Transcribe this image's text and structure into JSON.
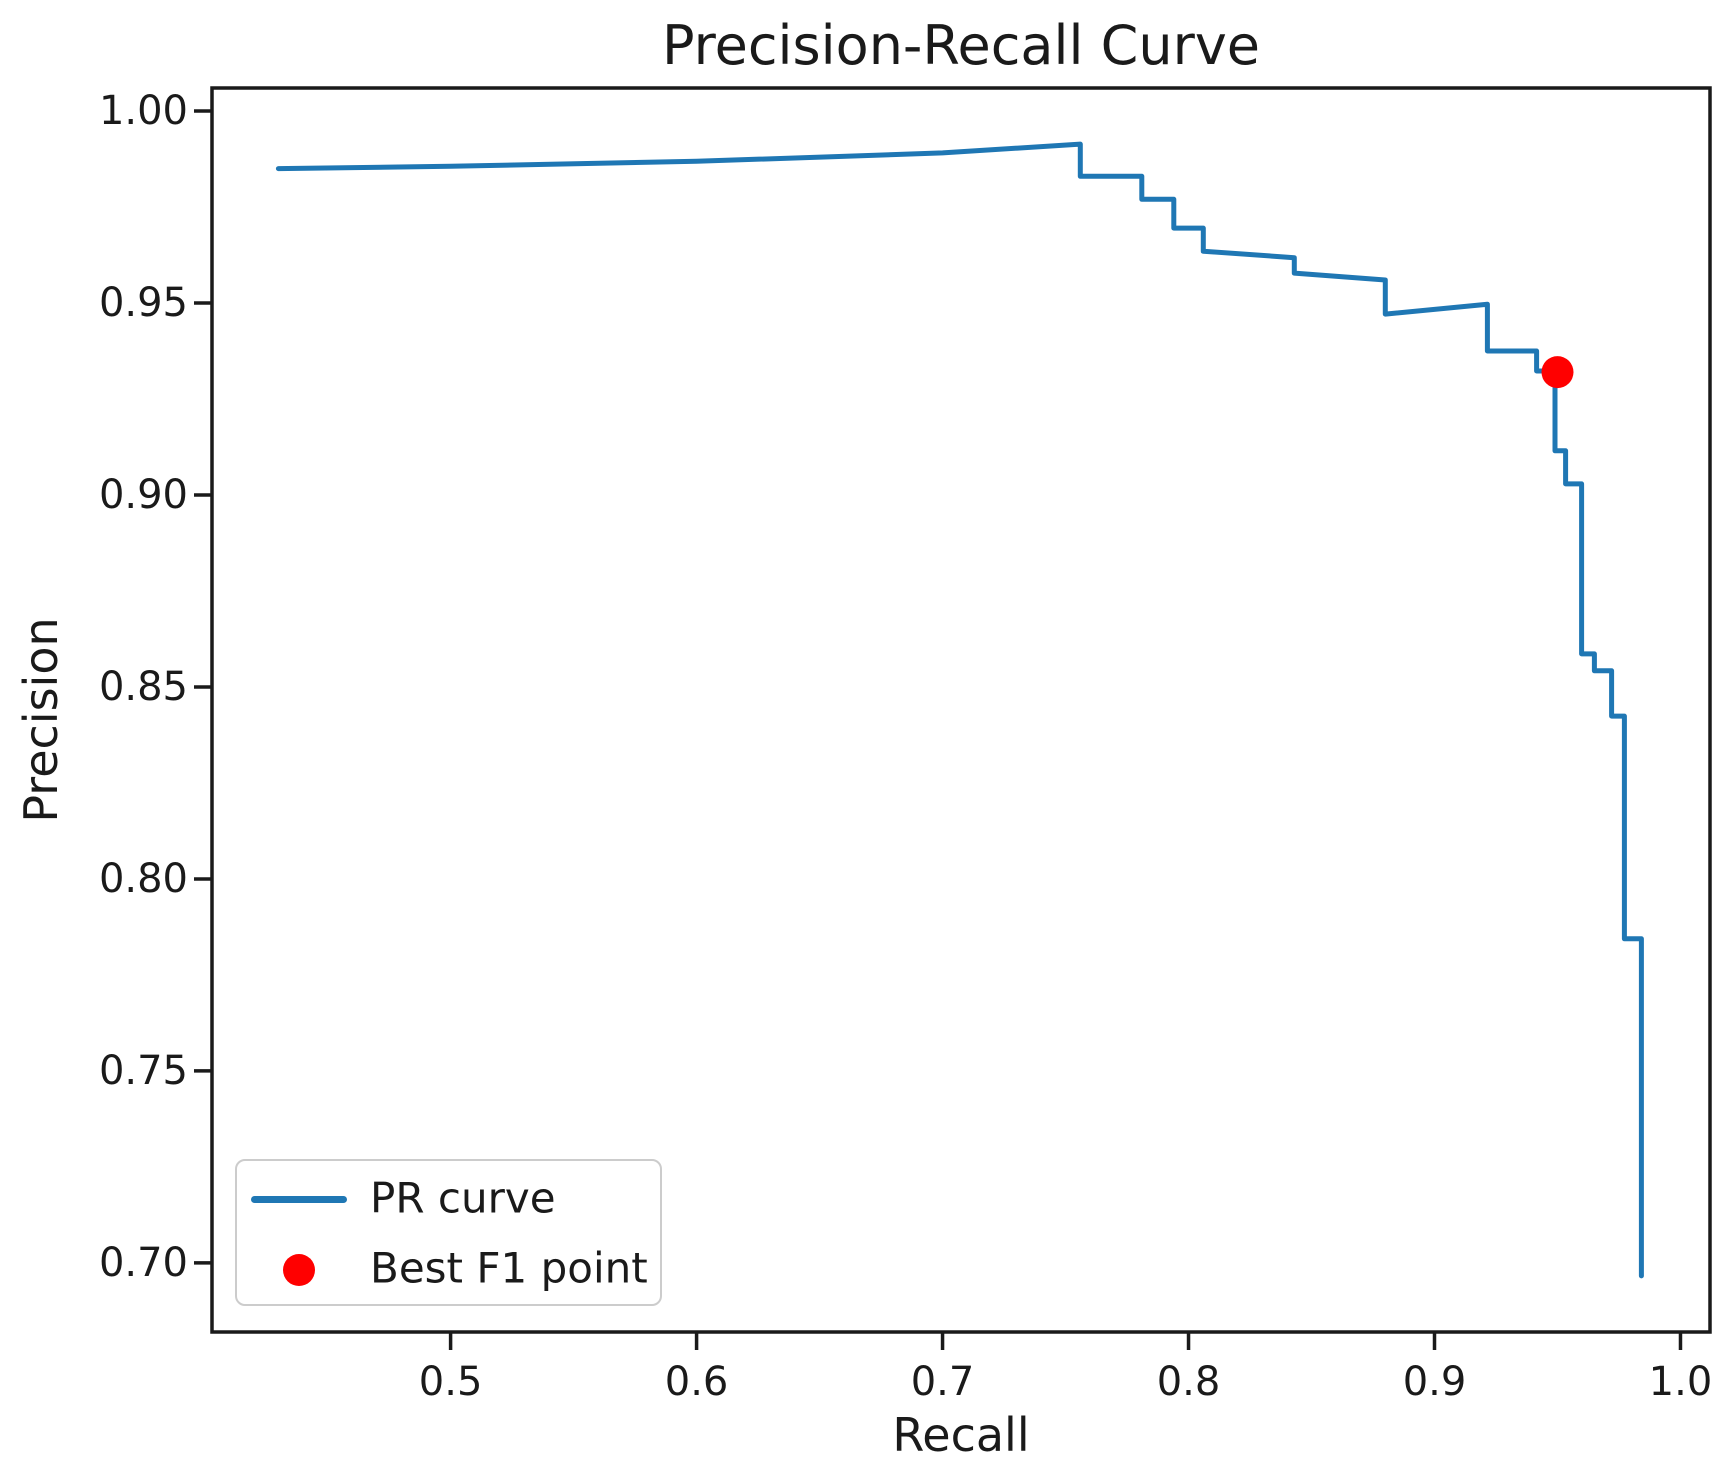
{
  "chart_data": {
    "type": "line",
    "title": "Precision-Recall Curve",
    "xlabel": "Recall",
    "ylabel": "Precision",
    "xlim": [
      0.403,
      1.012
    ],
    "ylim": [
      0.682,
      1.006
    ],
    "grid": false,
    "xticks": {
      "values": [
        0.5,
        0.6,
        0.7,
        0.8,
        0.9,
        1.0
      ],
      "labels": [
        "0.5",
        "0.6",
        "0.7",
        "0.8",
        "0.9",
        "1.0"
      ]
    },
    "yticks": {
      "values": [
        0.7,
        0.75,
        0.8,
        0.85,
        0.9,
        0.95,
        1.0
      ],
      "labels": [
        "0.70",
        "0.75",
        "0.80",
        "0.85",
        "0.90",
        "0.95",
        "1.00"
      ]
    },
    "series": [
      {
        "name": "PR curve",
        "color": "#1f77b4",
        "points": [
          [
            0.43,
            0.985
          ],
          [
            0.5,
            0.9856
          ],
          [
            0.6,
            0.9869
          ],
          [
            0.7,
            0.9891
          ],
          [
            0.756,
            0.9914
          ],
          [
            0.756,
            0.983
          ],
          [
            0.781,
            0.983
          ],
          [
            0.781,
            0.977
          ],
          [
            0.794,
            0.977
          ],
          [
            0.794,
            0.9695
          ],
          [
            0.806,
            0.9695
          ],
          [
            0.806,
            0.9635
          ],
          [
            0.843,
            0.9618
          ],
          [
            0.843,
            0.9578
          ],
          [
            0.88,
            0.956
          ],
          [
            0.88,
            0.9471
          ],
          [
            0.9215,
            0.9497
          ],
          [
            0.9215,
            0.9375
          ],
          [
            0.9415,
            0.9375
          ],
          [
            0.9415,
            0.9323
          ],
          [
            0.949,
            0.9323
          ],
          [
            0.949,
            0.9115
          ],
          [
            0.9533,
            0.9115
          ],
          [
            0.9533,
            0.9029
          ],
          [
            0.9598,
            0.9029
          ],
          [
            0.9598,
            0.8586
          ],
          [
            0.965,
            0.8586
          ],
          [
            0.965,
            0.8542
          ],
          [
            0.972,
            0.8542
          ],
          [
            0.972,
            0.8424
          ],
          [
            0.9772,
            0.8424
          ],
          [
            0.9772,
            0.7844
          ],
          [
            0.9841,
            0.7844
          ],
          [
            0.9841,
            0.6966
          ]
        ]
      }
    ],
    "best_f1_point": {
      "name": "Best F1 point",
      "color": "#ff0000",
      "x": 0.95,
      "y": 0.932
    },
    "legend": {
      "position": "lower left",
      "entries": [
        {
          "label": "PR curve",
          "marker": "line",
          "color": "#1f77b4"
        },
        {
          "label": "Best F1 point",
          "marker": "dot",
          "color": "#ff0000"
        }
      ]
    },
    "axis_color": "#1a1a1a"
  }
}
